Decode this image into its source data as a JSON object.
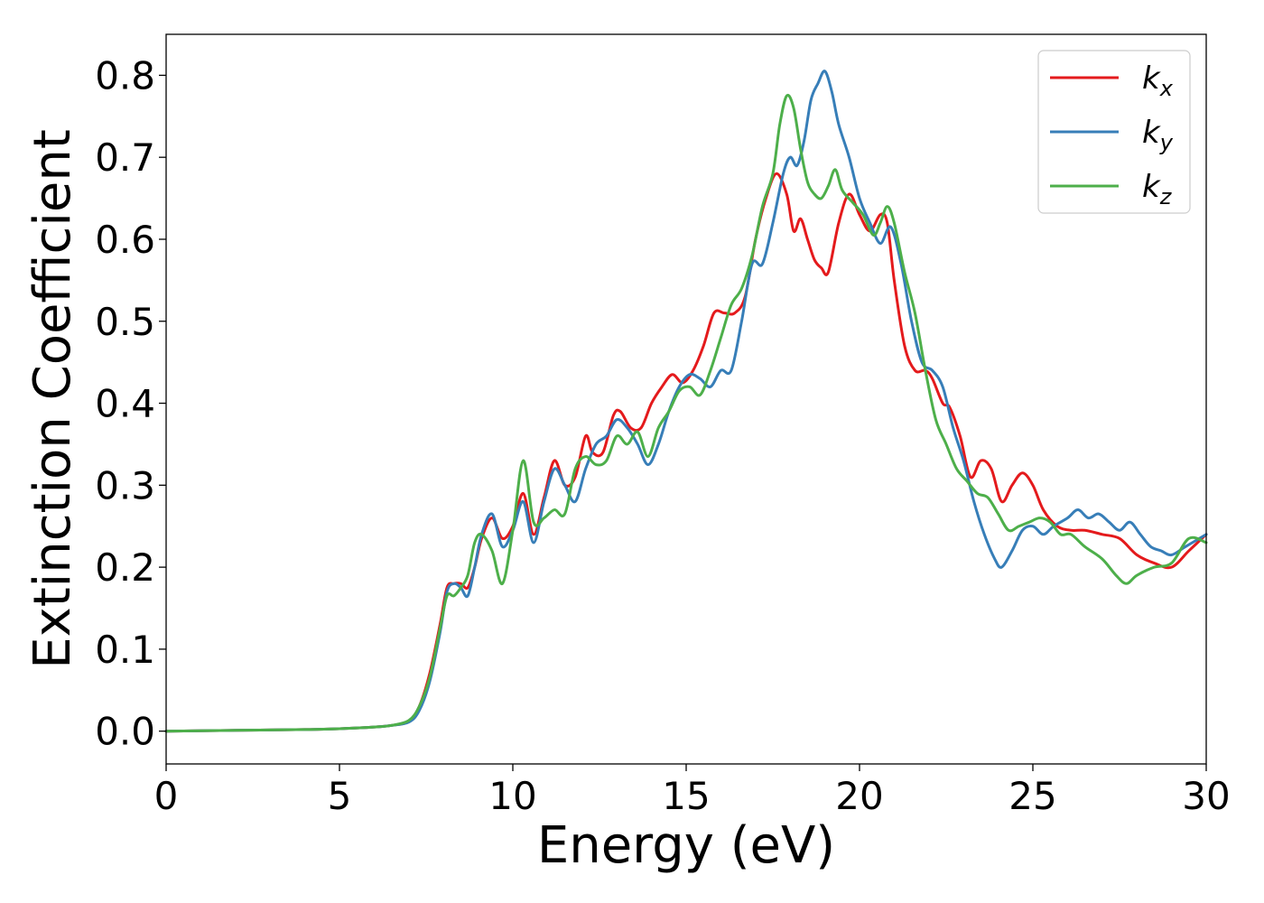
{
  "chart_data": {
    "type": "line",
    "xlabel": "Energy (eV)",
    "ylabel": "Extinction Coefficient",
    "xlim": [
      0,
      30
    ],
    "ylim": [
      -0.04,
      0.85
    ],
    "xticks": [
      0,
      5,
      10,
      15,
      20,
      25,
      30
    ],
    "yticks": [
      0.0,
      0.1,
      0.2,
      0.3,
      0.4,
      0.5,
      0.6,
      0.7,
      0.8
    ],
    "xtick_labels": [
      "0",
      "5",
      "10",
      "15",
      "20",
      "25",
      "30"
    ],
    "ytick_labels": [
      "0.0",
      "0.1",
      "0.2",
      "0.3",
      "0.4",
      "0.5",
      "0.6",
      "0.7",
      "0.8"
    ],
    "grid": false,
    "legend_position": "top-right",
    "series": [
      {
        "name": "k_x",
        "legend_base": "k",
        "legend_sub": "x",
        "color": "#e41a1c",
        "x": [
          0,
          2,
          4,
          5,
          6,
          6.5,
          7,
          7.3,
          7.6,
          7.9,
          8.1,
          8.3,
          8.5,
          8.7,
          8.9,
          9.1,
          9.4,
          9.7,
          10.0,
          10.3,
          10.6,
          10.9,
          11.2,
          11.5,
          11.8,
          12.1,
          12.3,
          12.6,
          12.9,
          13.1,
          13.4,
          13.7,
          14.0,
          14.3,
          14.6,
          14.9,
          15.2,
          15.5,
          15.8,
          16.1,
          16.4,
          16.7,
          17.0,
          17.3,
          17.6,
          17.9,
          18.1,
          18.3,
          18.5,
          18.7,
          18.9,
          19.1,
          19.4,
          19.7,
          20.0,
          20.3,
          20.6,
          20.8,
          21.0,
          21.3,
          21.6,
          21.9,
          22.1,
          22.4,
          22.6,
          22.9,
          23.2,
          23.5,
          23.8,
          24.1,
          24.4,
          24.7,
          25.0,
          25.3,
          25.7,
          26.1,
          26.5,
          27.0,
          27.5,
          28.0,
          28.5,
          29.0,
          29.5,
          30.0
        ],
        "y": [
          0.0,
          0.001,
          0.002,
          0.003,
          0.005,
          0.007,
          0.012,
          0.03,
          0.07,
          0.13,
          0.175,
          0.18,
          0.18,
          0.175,
          0.2,
          0.235,
          0.26,
          0.235,
          0.25,
          0.29,
          0.24,
          0.285,
          0.33,
          0.3,
          0.31,
          0.36,
          0.34,
          0.34,
          0.385,
          0.39,
          0.37,
          0.37,
          0.4,
          0.42,
          0.435,
          0.425,
          0.44,
          0.47,
          0.51,
          0.51,
          0.51,
          0.53,
          0.6,
          0.65,
          0.68,
          0.655,
          0.61,
          0.625,
          0.6,
          0.575,
          0.565,
          0.56,
          0.62,
          0.655,
          0.63,
          0.61,
          0.63,
          0.62,
          0.55,
          0.47,
          0.44,
          0.44,
          0.43,
          0.4,
          0.395,
          0.36,
          0.31,
          0.33,
          0.32,
          0.28,
          0.3,
          0.315,
          0.3,
          0.27,
          0.25,
          0.245,
          0.245,
          0.24,
          0.235,
          0.215,
          0.205,
          0.2,
          0.22,
          0.24
        ]
      },
      {
        "name": "k_y",
        "legend_base": "k",
        "legend_sub": "y",
        "color": "#377eb8",
        "x": [
          0,
          2,
          4,
          5,
          6,
          6.5,
          7,
          7.3,
          7.6,
          7.9,
          8.1,
          8.3,
          8.5,
          8.7,
          8.9,
          9.1,
          9.4,
          9.7,
          10.0,
          10.3,
          10.6,
          10.9,
          11.2,
          11.5,
          11.8,
          12.1,
          12.4,
          12.7,
          13.0,
          13.3,
          13.6,
          13.9,
          14.2,
          14.5,
          14.8,
          15.1,
          15.4,
          15.7,
          16.0,
          16.3,
          16.6,
          16.9,
          17.2,
          17.5,
          17.8,
          18.0,
          18.2,
          18.4,
          18.6,
          18.8,
          19.0,
          19.2,
          19.4,
          19.7,
          20.0,
          20.3,
          20.6,
          20.9,
          21.2,
          21.5,
          21.8,
          22.1,
          22.4,
          22.7,
          23.0,
          23.3,
          23.6,
          23.9,
          24.1,
          24.4,
          24.7,
          25.0,
          25.3,
          25.6,
          26.0,
          26.3,
          26.6,
          26.9,
          27.2,
          27.5,
          27.8,
          28.1,
          28.4,
          28.7,
          29.0,
          29.4,
          30.0
        ],
        "y": [
          0.0,
          0.001,
          0.002,
          0.003,
          0.005,
          0.007,
          0.011,
          0.025,
          0.06,
          0.12,
          0.17,
          0.18,
          0.175,
          0.165,
          0.2,
          0.24,
          0.265,
          0.225,
          0.245,
          0.28,
          0.23,
          0.28,
          0.32,
          0.3,
          0.28,
          0.32,
          0.35,
          0.36,
          0.38,
          0.37,
          0.35,
          0.325,
          0.35,
          0.39,
          0.42,
          0.435,
          0.43,
          0.42,
          0.44,
          0.44,
          0.5,
          0.57,
          0.57,
          0.62,
          0.68,
          0.7,
          0.69,
          0.72,
          0.77,
          0.79,
          0.805,
          0.78,
          0.74,
          0.7,
          0.65,
          0.62,
          0.595,
          0.615,
          0.57,
          0.5,
          0.45,
          0.44,
          0.42,
          0.37,
          0.33,
          0.28,
          0.24,
          0.21,
          0.2,
          0.22,
          0.245,
          0.25,
          0.24,
          0.25,
          0.26,
          0.27,
          0.26,
          0.265,
          0.255,
          0.245,
          0.255,
          0.24,
          0.225,
          0.22,
          0.215,
          0.225,
          0.24
        ]
      },
      {
        "name": "k_z",
        "legend_base": "k",
        "legend_sub": "z",
        "color": "#4daf4a",
        "x": [
          0,
          2,
          4,
          5,
          6,
          6.5,
          7,
          7.3,
          7.6,
          7.9,
          8.1,
          8.3,
          8.5,
          8.7,
          8.9,
          9.1,
          9.4,
          9.7,
          10.0,
          10.3,
          10.6,
          10.9,
          11.2,
          11.5,
          11.8,
          12.1,
          12.4,
          12.7,
          13.0,
          13.3,
          13.6,
          13.9,
          14.2,
          14.5,
          14.8,
          15.1,
          15.4,
          15.7,
          16.0,
          16.3,
          16.6,
          16.9,
          17.2,
          17.5,
          17.7,
          17.9,
          18.1,
          18.3,
          18.5,
          18.7,
          18.9,
          19.1,
          19.3,
          19.5,
          19.8,
          20.1,
          20.4,
          20.6,
          20.8,
          21.0,
          21.3,
          21.6,
          21.9,
          22.2,
          22.5,
          22.8,
          23.1,
          23.4,
          23.7,
          24.0,
          24.3,
          24.6,
          24.9,
          25.2,
          25.5,
          25.8,
          26.1,
          26.5,
          27.0,
          27.4,
          27.7,
          28.0,
          28.5,
          29.0,
          29.5,
          30.0
        ],
        "y": [
          0.0,
          0.001,
          0.002,
          0.003,
          0.005,
          0.007,
          0.013,
          0.03,
          0.065,
          0.125,
          0.165,
          0.165,
          0.175,
          0.19,
          0.23,
          0.24,
          0.22,
          0.18,
          0.245,
          0.33,
          0.255,
          0.26,
          0.27,
          0.265,
          0.32,
          0.335,
          0.325,
          0.33,
          0.36,
          0.35,
          0.365,
          0.335,
          0.37,
          0.39,
          0.415,
          0.42,
          0.41,
          0.44,
          0.48,
          0.52,
          0.54,
          0.58,
          0.64,
          0.68,
          0.74,
          0.775,
          0.76,
          0.71,
          0.67,
          0.655,
          0.65,
          0.665,
          0.685,
          0.66,
          0.645,
          0.63,
          0.605,
          0.62,
          0.64,
          0.62,
          0.56,
          0.51,
          0.44,
          0.38,
          0.35,
          0.32,
          0.305,
          0.29,
          0.285,
          0.265,
          0.245,
          0.25,
          0.255,
          0.26,
          0.255,
          0.24,
          0.24,
          0.225,
          0.21,
          0.19,
          0.18,
          0.19,
          0.2,
          0.205,
          0.235,
          0.23
        ]
      }
    ]
  }
}
